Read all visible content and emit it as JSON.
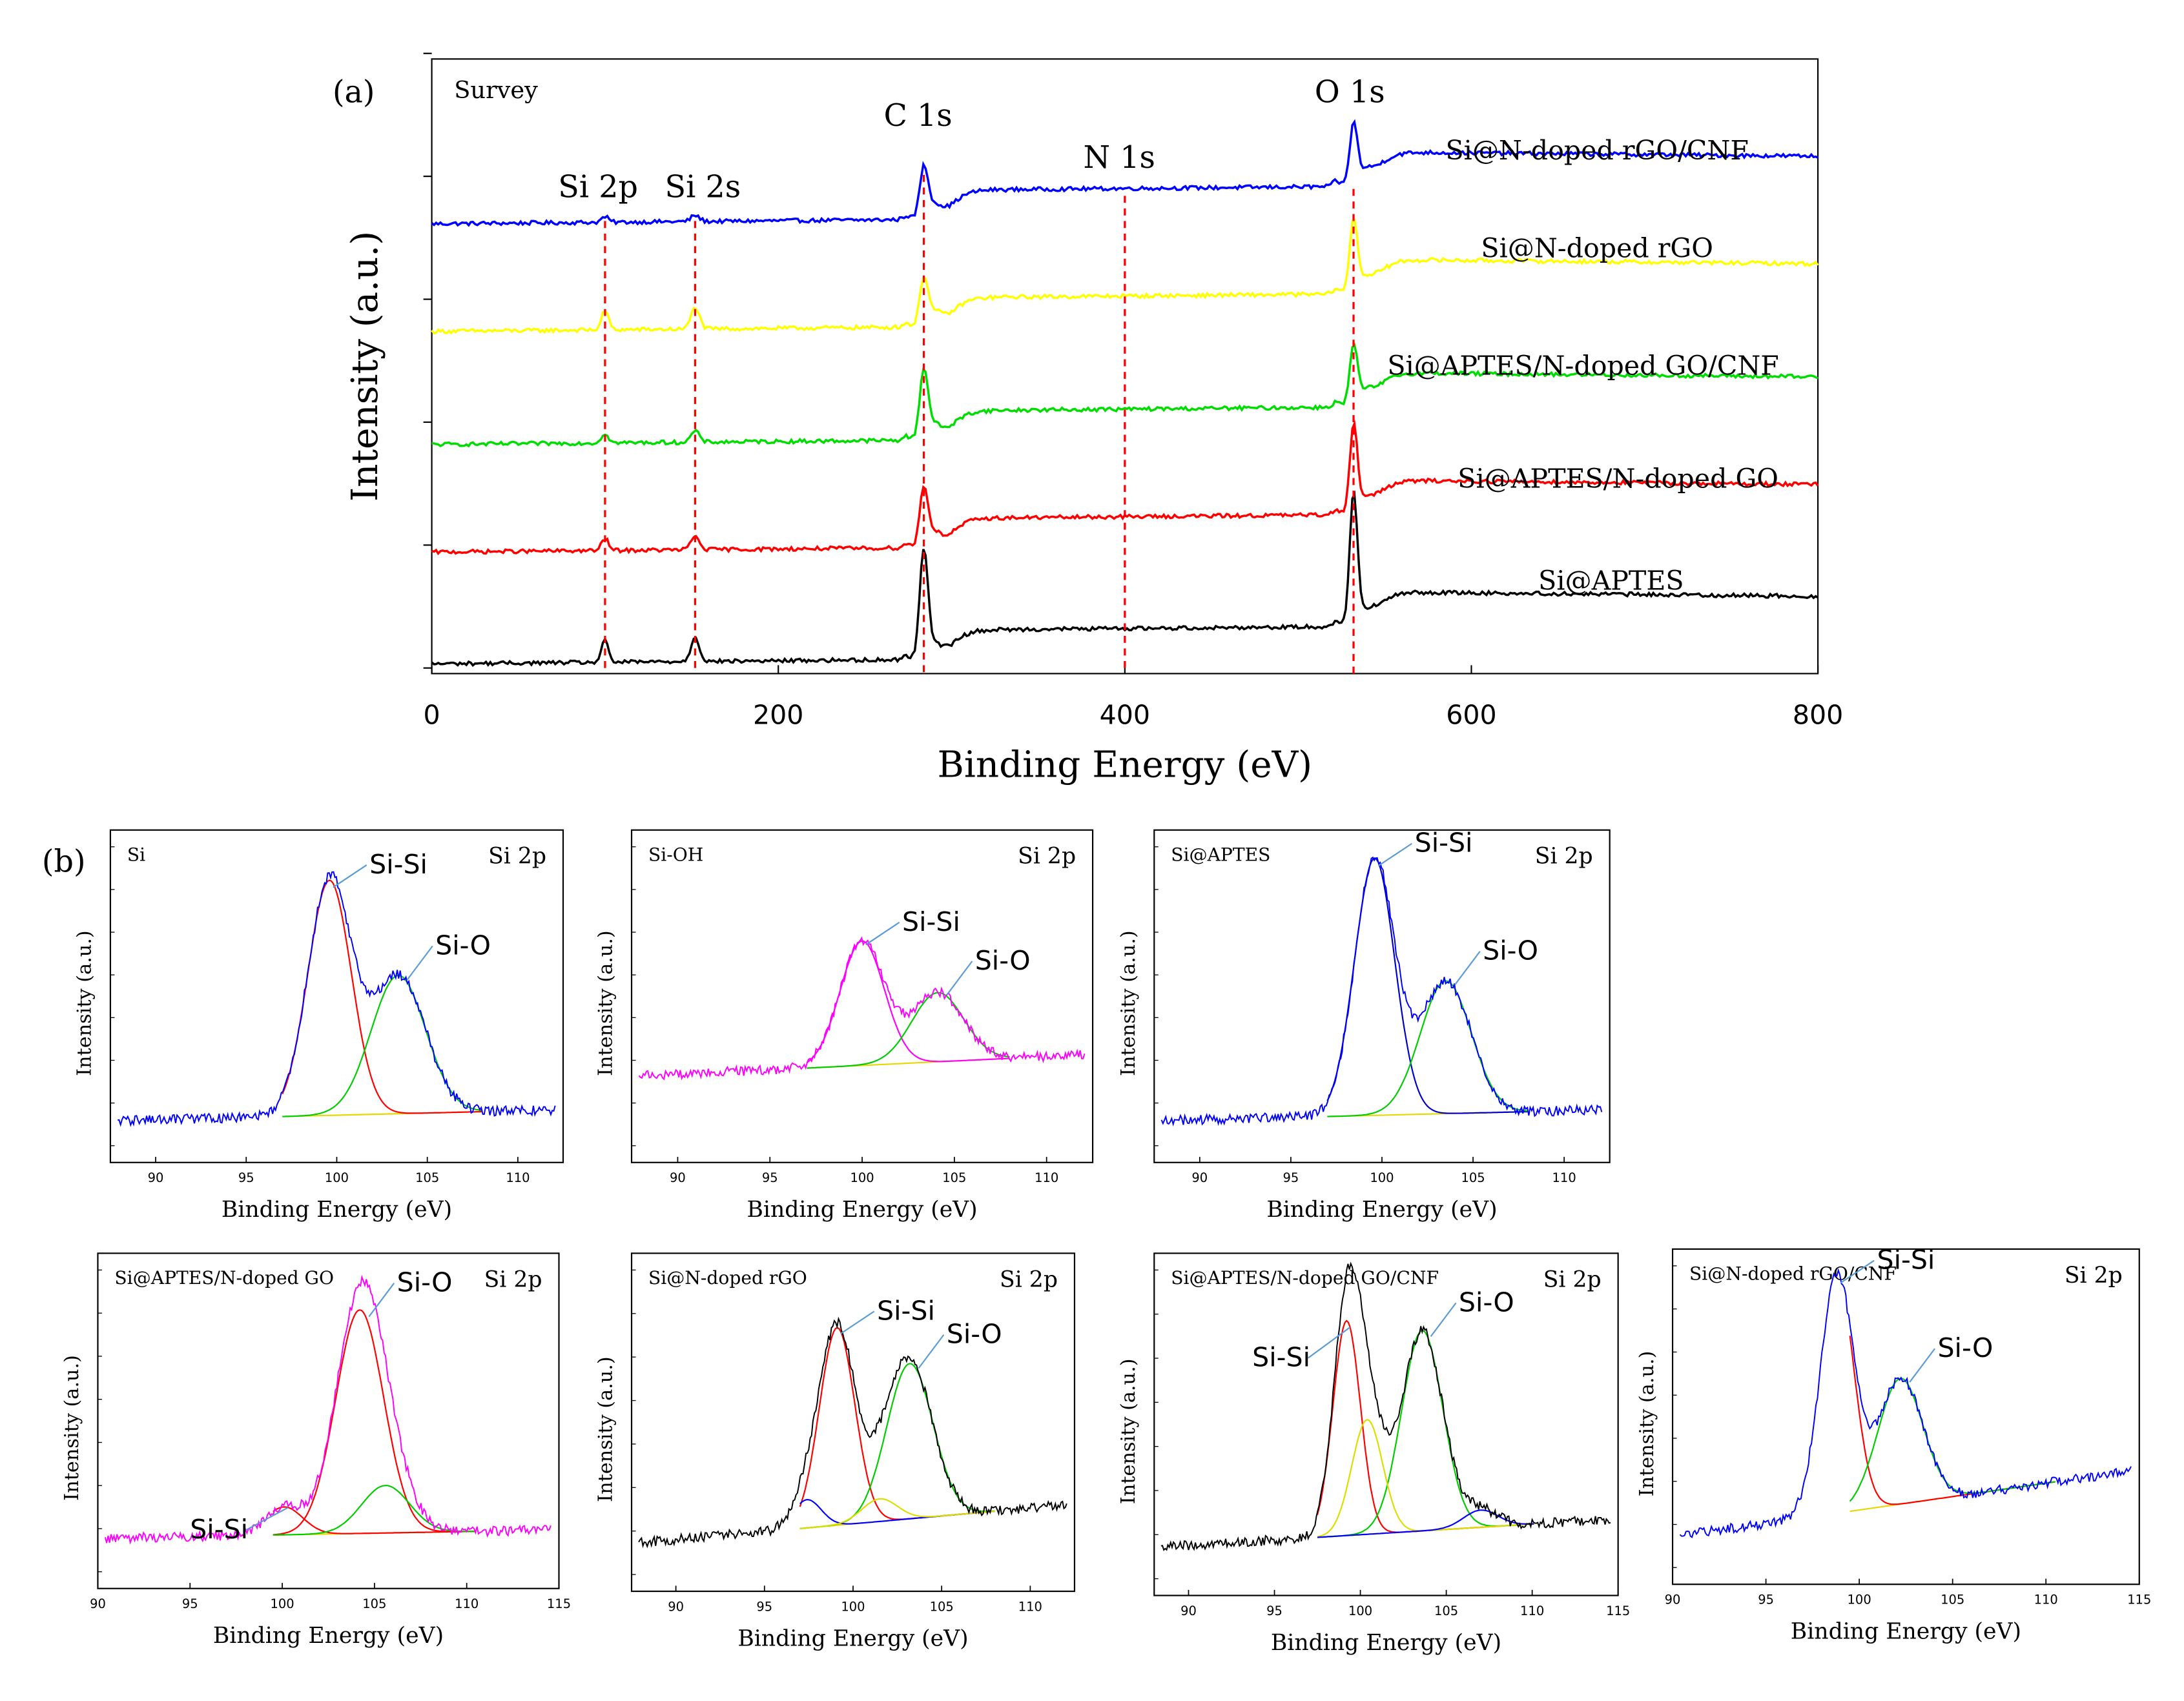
{
  "chart_data": [
    {
      "id": "survey",
      "type": "line",
      "panel_label": "(a)",
      "corner_label": "Survey",
      "xlabel": "Binding Energy (eV)",
      "ylabel": "Intensity (a.u.)",
      "xlim": [
        0,
        800
      ],
      "xticks": [
        "0",
        "200",
        "400",
        "600",
        "800"
      ],
      "peak_markers": [
        {
          "label": "Si 2p",
          "energy": 100
        },
        {
          "label": "Si 2s",
          "energy": 152
        },
        {
          "label": "C 1s",
          "energy": 284
        },
        {
          "label": "N 1s",
          "energy": 400
        },
        {
          "label": "O 1s",
          "energy": 532
        }
      ],
      "series": [
        {
          "name": "Si@N-doped rGO/CNF",
          "color": "#0000ff",
          "offset": 4,
          "si_weight": 0.25,
          "c_height": 3.2,
          "o_height": 3.7
        },
        {
          "name": "Si@N-doped rGO",
          "color": "#ffff00",
          "offset": 3,
          "si_weight": 0.9,
          "c_height": 3.0,
          "o_height": 4.5
        },
        {
          "name": "Si@APTES/N-doped GO/CNF",
          "color": "#00dd00",
          "offset": 2,
          "si_weight": 0.45,
          "c_height": 4.4,
          "o_height": 3.6
        },
        {
          "name": "Si@APTES/N-doped GO",
          "color": "#ff0000",
          "offset": 1,
          "si_weight": 0.55,
          "c_height": 3.7,
          "o_height": 5.4
        },
        {
          "name": "Si@APTES",
          "color": "#000000",
          "offset": 0,
          "si_weight": 1.0,
          "c_height": 6.9,
          "o_height": 8.3
        }
      ]
    },
    {
      "id": "si2p-si",
      "type": "line",
      "panel_label": "(b)",
      "sample": "Si",
      "region": "Si 2p",
      "xlabel": "Binding Energy (eV)",
      "ylabel": "Intensity (a.u.)",
      "xlim": [
        87.5,
        112.5
      ],
      "xticks": [
        "90",
        "95",
        "100",
        "105",
        "110"
      ],
      "raw_color": "#0000ff",
      "baseline": [
        0.06,
        0.1
      ],
      "components": [
        {
          "name": "Si-Si",
          "center": 99.6,
          "height": 0.85,
          "width": 1.2,
          "color": "#ff0000"
        },
        {
          "name": "Si-O",
          "center": 103.4,
          "height": 0.5,
          "width": 1.5,
          "color": "#00cc00"
        }
      ],
      "annotations": [
        {
          "text": "Si-Si",
          "target": 0
        },
        {
          "text": "Si-O",
          "target": 1
        }
      ]
    },
    {
      "id": "si2p-sioh",
      "type": "line",
      "sample": "Si-OH",
      "region": "Si 2p",
      "xlabel": "Binding Energy (eV)",
      "ylabel": "Intensity (a.u.)",
      "xlim": [
        87.5,
        112.5
      ],
      "xticks": [
        "90",
        "95",
        "100",
        "105",
        "110"
      ],
      "raw_color": "#ff00ff",
      "baseline": [
        0.22,
        0.3
      ],
      "components": [
        {
          "name": "Si-Si",
          "center": 100.0,
          "height": 0.45,
          "width": 1.2,
          "color": "#ff00ff"
        },
        {
          "name": "Si-O",
          "center": 104.1,
          "height": 0.25,
          "width": 1.4,
          "color": "#00cc00"
        }
      ],
      "annotations": [
        {
          "text": "Si-Si",
          "target": 0
        },
        {
          "text": "Si-O",
          "target": 1
        }
      ]
    },
    {
      "id": "si2p-siaptes",
      "type": "line",
      "sample": "Si@APTES",
      "region": "Si 2p",
      "xlabel": "Binding Energy (eV)",
      "ylabel": "Intensity (a.u.)",
      "xlim": [
        87.5,
        112.5
      ],
      "xticks": [
        "90",
        "95",
        "100",
        "105",
        "110"
      ],
      "raw_color": "#0000ff",
      "baseline": [
        0.06,
        0.1
      ],
      "components": [
        {
          "name": "Si-Si",
          "center": 99.6,
          "height": 0.93,
          "width": 1.1,
          "color": "#0000cc"
        },
        {
          "name": "Si-O",
          "center": 103.5,
          "height": 0.48,
          "width": 1.4,
          "color": "#00cc00"
        }
      ],
      "annotations": [
        {
          "text": "Si-Si",
          "target": 0
        },
        {
          "text": "Si-O",
          "target": 1
        }
      ]
    },
    {
      "id": "si2p-aptes-ngo",
      "type": "line",
      "sample": "Si@APTES/N-doped GO",
      "region": "Si 2p",
      "xlabel": "Binding Energy (eV)",
      "ylabel": "Intensity (a.u.)",
      "xlim": [
        90,
        115
      ],
      "xticks": [
        "90",
        "95",
        "100",
        "105",
        "110",
        "115"
      ],
      "raw_color": "#ff00ff",
      "baseline": [
        0.09,
        0.12
      ],
      "components": [
        {
          "name": "Si-Si",
          "center": 100.1,
          "height": 0.1,
          "width": 1.0,
          "color": "#ff0000"
        },
        {
          "name": "Si-O",
          "center": 104.2,
          "height": 0.8,
          "width": 1.3,
          "color": "#ff0000"
        },
        {
          "name": "Si-O (2)",
          "center": 105.6,
          "height": 0.17,
          "width": 1.3,
          "color": "#00cc00"
        }
      ],
      "annotations": [
        {
          "text": "Si-Si",
          "target": 0
        },
        {
          "text": "Si-O",
          "target": 1
        }
      ]
    },
    {
      "id": "si2p-nrgo",
      "type": "line",
      "sample": "Si@N-doped rGO",
      "region": "Si 2p",
      "xlabel": "Binding Energy (eV)",
      "ylabel": "Intensity (a.u.)",
      "xlim": [
        87.5,
        112.5
      ],
      "xticks": [
        "90",
        "95",
        "100",
        "105",
        "110"
      ],
      "raw_color": "#000000",
      "baseline": [
        0.08,
        0.22
      ],
      "components": [
        {
          "name": "Si-Si",
          "center": 99.1,
          "height": 0.7,
          "width": 1.0,
          "color": "#ff0000"
        },
        {
          "name": "Si-O",
          "center": 103.2,
          "height": 0.55,
          "width": 1.3,
          "color": "#00cc00"
        },
        {
          "name": "minor-1",
          "center": 97.4,
          "height": 0.1,
          "width": 0.8,
          "color": "#0000ff"
        },
        {
          "name": "minor-2",
          "center": 101.5,
          "height": 0.08,
          "width": 1.0,
          "color": "#dddd00"
        }
      ],
      "annotations": [
        {
          "text": "Si-Si",
          "target": 0
        },
        {
          "text": "Si-O",
          "target": 1
        }
      ]
    },
    {
      "id": "si2p-aptes-ngo-cnf",
      "type": "line",
      "sample": "Si@APTES/N-doped GO/CNF",
      "region": "Si 2p",
      "xlabel": "Binding Energy (eV)",
      "ylabel": "Intensity (a.u.)",
      "xlim": [
        88,
        115
      ],
      "xticks": [
        "90",
        "95",
        "100",
        "105",
        "110",
        "115"
      ],
      "raw_color": "#000000",
      "baseline": [
        0.08,
        0.18
      ],
      "components": [
        {
          "name": "Si-Si",
          "center": 99.2,
          "height": 0.75,
          "width": 0.8,
          "color": "#ff0000"
        },
        {
          "name": "Si-O",
          "center": 103.6,
          "height": 0.7,
          "width": 1.2,
          "color": "#00cc00"
        },
        {
          "name": "minor-1",
          "center": 100.4,
          "height": 0.4,
          "width": 0.9,
          "color": "#dddd00"
        },
        {
          "name": "minor-2",
          "center": 107.0,
          "height": 0.06,
          "width": 1.0,
          "color": "#0000ff"
        }
      ],
      "annotations": [
        {
          "text": "Si-Si",
          "target": 0
        },
        {
          "text": "Si-O",
          "target": 1
        }
      ]
    },
    {
      "id": "si2p-nrgo-cnf",
      "type": "line",
      "sample": "Si@N-doped rGO/CNF",
      "region": "Si 2p",
      "xlabel": "Binding Energy (eV)",
      "ylabel": "Intensity (a.u.)",
      "xlim": [
        90,
        115
      ],
      "xticks": [
        "90",
        "95",
        "100",
        "105",
        "110",
        "115"
      ],
      "raw_color": "#0000ff",
      "baseline": [
        0.08,
        0.32
      ],
      "components": [
        {
          "name": "Si-Si",
          "center": 98.8,
          "height": 0.85,
          "width": 0.9,
          "color": "#ff0000"
        },
        {
          "name": "Si-O",
          "center": 102.2,
          "height": 0.45,
          "width": 1.2,
          "color": "#00cc00"
        }
      ],
      "annotations": [
        {
          "text": "Si-Si",
          "target": 0
        },
        {
          "text": "Si-O",
          "target": 1
        }
      ]
    }
  ]
}
